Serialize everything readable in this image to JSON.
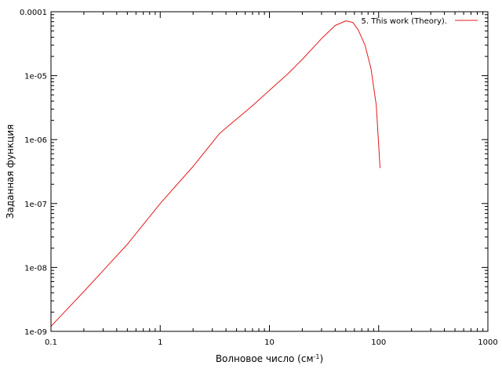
{
  "chart_data": {
    "type": "line",
    "title": "",
    "xlabel": {
      "main": "Волновое число (см",
      "sup": "-1",
      "end": ")"
    },
    "ylabel": "Заданная функция",
    "x_scale": "log",
    "y_scale": "log",
    "xlim": [
      0.1,
      1000
    ],
    "ylim": [
      1e-09,
      0.0001
    ],
    "x_ticks": [
      {
        "value": 0.1,
        "label": "0.1"
      },
      {
        "value": 1,
        "label": "1"
      },
      {
        "value": 10,
        "label": "10"
      },
      {
        "value": 100,
        "label": "100"
      },
      {
        "value": 1000,
        "label": "1000"
      }
    ],
    "y_ticks": [
      {
        "value": 1e-09,
        "label": "1e-09"
      },
      {
        "value": 1e-08,
        "label": "1e-08"
      },
      {
        "value": 1e-07,
        "label": "1e-07"
      },
      {
        "value": 1e-06,
        "label": "1e-06"
      },
      {
        "value": 1e-05,
        "label": "1e-05"
      },
      {
        "value": 0.0001,
        "label": "0.0001"
      }
    ],
    "grid": false,
    "legend_position": "top-right",
    "series": [
      {
        "name": "5. This work (Theory).",
        "color": "#e41a1c",
        "x": [
          0.1,
          0.2,
          0.5,
          1,
          2,
          3.5,
          7,
          15,
          20,
          30,
          40,
          50,
          58,
          65,
          75,
          85,
          95,
          103
        ],
        "y": [
          1.2e-09,
          4.2e-09,
          2.3e-08,
          1e-07,
          3.8e-07,
          1.25e-06,
          3.4e-06,
          1.1e-05,
          1.8e-05,
          3.8e-05,
          6.1e-05,
          7.2e-05,
          6.8e-05,
          5.2e-05,
          3e-05,
          1.3e-05,
          3.5e-06,
          3.6e-07
        ]
      }
    ]
  }
}
